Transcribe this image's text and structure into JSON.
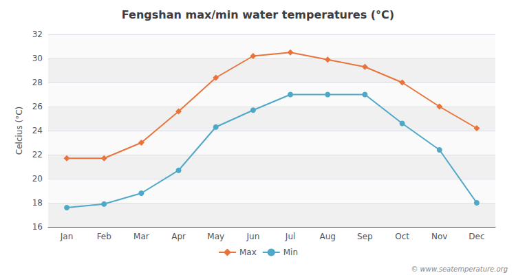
{
  "chart_data": {
    "type": "line",
    "title": "Fengshan max/min water temperatures (°C)",
    "ylabel": "Celcius (°C)",
    "categories": [
      "Jan",
      "Feb",
      "Mar",
      "Apr",
      "May",
      "Jun",
      "Jul",
      "Aug",
      "Sep",
      "Oct",
      "Nov",
      "Dec"
    ],
    "series": [
      {
        "name": "Max",
        "color": "#e8743c",
        "marker": "diamond",
        "values": [
          21.7,
          21.7,
          23.0,
          25.6,
          28.4,
          30.2,
          30.5,
          29.9,
          29.3,
          28.0,
          26.0,
          24.2
        ]
      },
      {
        "name": "Min",
        "color": "#4fa8c8",
        "marker": "circle",
        "values": [
          17.6,
          17.9,
          18.8,
          20.7,
          24.3,
          25.7,
          27.0,
          27.0,
          27.0,
          24.6,
          22.4,
          18.0
        ]
      }
    ],
    "ylim": [
      16,
      32
    ],
    "yticks": [
      16,
      18,
      20,
      22,
      24,
      26,
      28,
      30,
      32
    ],
    "grid": true,
    "legend": "bottom",
    "annotation": "© www.seatemperature.org"
  }
}
